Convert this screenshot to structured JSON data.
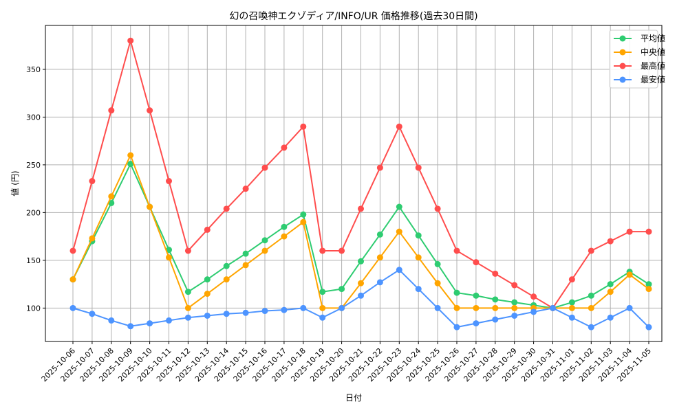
{
  "chart_data": {
    "type": "line",
    "title": "幻の召喚神エクゾディア/INFO/UR 価格推移(過去30日間)",
    "xlabel": "日付",
    "ylabel": "値 (円)",
    "ylim": [
      65,
      396
    ],
    "yticks": [
      100,
      150,
      200,
      250,
      300,
      350
    ],
    "grid": true,
    "legend_position": "top-right",
    "x": [
      "2025-10-06",
      "2025-10-07",
      "2025-10-08",
      "2025-10-09",
      "2025-10-10",
      "2025-10-11",
      "2025-10-12",
      "2025-10-13",
      "2025-10-14",
      "2025-10-15",
      "2025-10-16",
      "2025-10-17",
      "2025-10-18",
      "2025-10-19",
      "2025-10-20",
      "2025-10-21",
      "2025-10-22",
      "2025-10-23",
      "2025-10-24",
      "2025-10-25",
      "2025-10-26",
      "2025-10-27",
      "2025-10-28",
      "2025-10-29",
      "2025-10-30",
      "2025-10-31",
      "2025-11-01",
      "2025-11-02",
      "2025-11-03",
      "2025-11-04",
      "2025-11-05"
    ],
    "series": [
      {
        "name": "平均値",
        "color": "#2ecc71",
        "values": [
          130,
          170,
          210,
          251,
          206,
          161,
          117,
          130,
          144,
          157,
          171,
          185,
          198,
          117,
          120,
          149,
          177,
          206,
          176,
          146,
          116,
          113,
          109,
          106,
          103,
          100,
          106,
          113,
          125,
          138,
          125
        ]
      },
      {
        "name": "中央値",
        "color": "#ffa500",
        "values": [
          130,
          173,
          217,
          260,
          206,
          153,
          100,
          115,
          130,
          145,
          160,
          175,
          190,
          100,
          100,
          126,
          153,
          180,
          153,
          126,
          100,
          100,
          100,
          100,
          100,
          100,
          100,
          100,
          117,
          135,
          120
        ]
      },
      {
        "name": "最高値",
        "color": "#ff4d4d",
        "values": [
          160,
          233,
          307,
          380,
          307,
          233,
          160,
          182,
          204,
          225,
          247,
          268,
          290,
          160,
          160,
          204,
          247,
          290,
          247,
          204,
          160,
          148,
          136,
          124,
          112,
          100,
          130,
          160,
          170,
          180,
          180
        ]
      },
      {
        "name": "最安値",
        "color": "#4d94ff",
        "values": [
          100,
          94,
          87,
          81,
          84,
          87,
          90,
          92,
          94,
          95,
          97,
          98,
          100,
          90,
          100,
          113,
          127,
          140,
          120,
          100,
          80,
          84,
          88,
          92,
          96,
          100,
          90,
          80,
          90,
          100,
          80
        ]
      }
    ]
  }
}
